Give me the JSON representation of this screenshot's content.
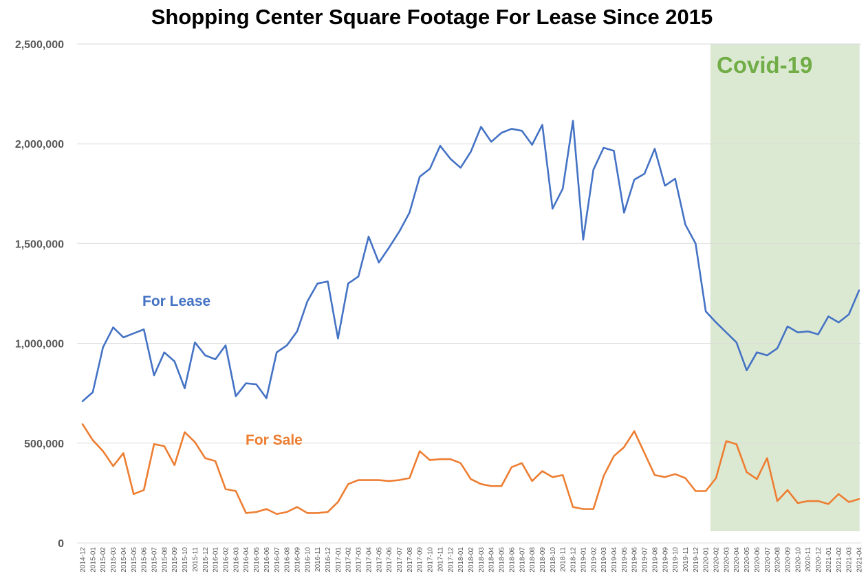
{
  "colors": {
    "for_lease": "#4472c4",
    "for_sale": "#ed7d31",
    "covid_band": "#dce9d2",
    "covid_text": "#70ad47"
  },
  "chart_data": {
    "type": "line",
    "title": "Shopping Center Square Footage For Lease Since 2015",
    "xlabel": "",
    "ylabel": "",
    "ylim": [
      0,
      2500000
    ],
    "yticks": [
      0,
      500000,
      1000000,
      1500000,
      2000000,
      2500000
    ],
    "ytick_labels": [
      "0",
      "500,000",
      "1,000,000",
      "1,500,000",
      "2,000,000",
      "2,500,000"
    ],
    "grid": true,
    "x": [
      "2014-12",
      "2015-01",
      "2015-02",
      "2015-03",
      "2015-04",
      "2015-05",
      "2015-06",
      "2015-07",
      "2015-08",
      "2015-09",
      "2015-10",
      "2015-11",
      "2015-12",
      "2016-01",
      "2016-02",
      "2016-03",
      "2016-04",
      "2016-05",
      "2016-06",
      "2016-07",
      "2016-08",
      "2016-09",
      "2016-10",
      "2016-11",
      "2016-12",
      "2017-01",
      "2017-02",
      "2017-03",
      "2017-04",
      "2017-05",
      "2017-06",
      "2017-07",
      "2017-08",
      "2017-09",
      "2017-10",
      "2017-11",
      "2017-12",
      "2018-01",
      "2018-02",
      "2018-03",
      "2018-04",
      "2018-05",
      "2018-06",
      "2018-07",
      "2018-08",
      "2018-09",
      "2018-10",
      "2018-11",
      "2018-12",
      "2019-01",
      "2019-02",
      "2019-03",
      "2019-04",
      "2019-05",
      "2019-06",
      "2019-07",
      "2019-08",
      "2019-09",
      "2019-10",
      "2019-11",
      "2019-12",
      "2020-01",
      "2020-02",
      "2020-03",
      "2020-04",
      "2020-05",
      "2020-06",
      "2020-07",
      "2020-08",
      "2020-09",
      "2020-10",
      "2020-11",
      "2020-12",
      "2021-01",
      "2021-02",
      "2021-03",
      "2021-04"
    ],
    "series": [
      {
        "name": "For Lease",
        "values": [
          710000,
          755000,
          980000,
          1080000,
          1030000,
          1050000,
          1070000,
          840000,
          955000,
          910000,
          775000,
          1005000,
          940000,
          920000,
          990000,
          735000,
          800000,
          795000,
          725000,
          955000,
          990000,
          1060000,
          1210000,
          1300000,
          1310000,
          1025000,
          1300000,
          1335000,
          1535000,
          1405000,
          1480000,
          1560000,
          1655000,
          1835000,
          1875000,
          1990000,
          1925000,
          1880000,
          1960000,
          2085000,
          2010000,
          2055000,
          2075000,
          2065000,
          1995000,
          2095000,
          1675000,
          1775000,
          2115000,
          1520000,
          1870000,
          1980000,
          1965000,
          1655000,
          1820000,
          1850000,
          1975000,
          1790000,
          1825000,
          1595000,
          1500000,
          1160000,
          1105000,
          1055000,
          1005000,
          865000,
          955000,
          940000,
          975000,
          1085000,
          1055000,
          1060000,
          1045000,
          1135000,
          1105000,
          1145000,
          1265000
        ]
      },
      {
        "name": "For Sale",
        "values": [
          595000,
          515000,
          460000,
          385000,
          450000,
          245000,
          265000,
          495000,
          485000,
          390000,
          555000,
          505000,
          425000,
          410000,
          270000,
          260000,
          150000,
          155000,
          170000,
          145000,
          155000,
          180000,
          150000,
          150000,
          155000,
          205000,
          295000,
          315000,
          315000,
          315000,
          310000,
          315000,
          325000,
          460000,
          415000,
          420000,
          420000,
          400000,
          320000,
          295000,
          285000,
          285000,
          380000,
          400000,
          310000,
          360000,
          330000,
          340000,
          180000,
          170000,
          170000,
          335000,
          435000,
          480000,
          560000,
          450000,
          340000,
          330000,
          345000,
          325000,
          260000,
          260000,
          325000,
          510000,
          495000,
          355000,
          320000,
          425000,
          210000,
          265000,
          200000,
          210000,
          210000,
          195000,
          245000,
          205000,
          220000
        ]
      }
    ],
    "shaded_region": {
      "start": "2020-02",
      "end": "2021-04",
      "label": "Covid-19"
    },
    "annotations": [
      "For Lease",
      "For Sale",
      "Covid-19"
    ]
  }
}
